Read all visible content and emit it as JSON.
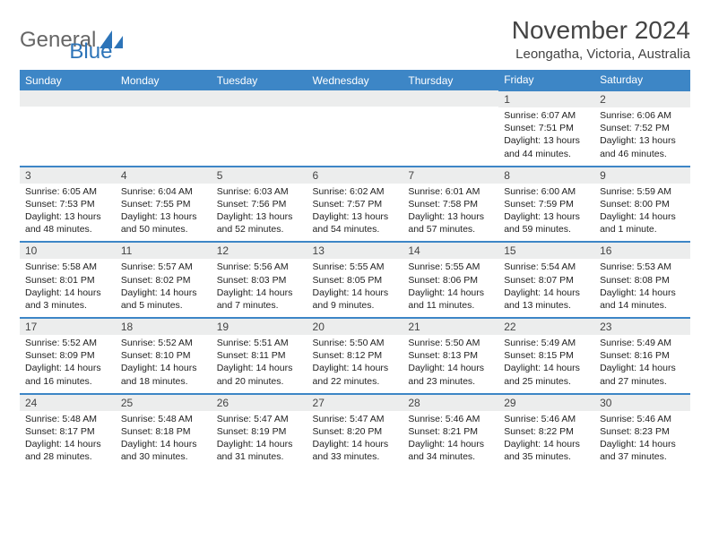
{
  "logo": {
    "word1": "General",
    "word2": "Blue"
  },
  "title": "November 2024",
  "location": "Leongatha, Victoria, Australia",
  "headers": [
    "Sunday",
    "Monday",
    "Tuesday",
    "Wednesday",
    "Thursday",
    "Friday",
    "Saturday"
  ],
  "colors": {
    "header_bg": "#3d86c6",
    "header_text": "#ffffff",
    "daynum_bg": "#eceded",
    "border": "#3d86c6",
    "logo_blue": "#2d74b8",
    "text": "#222222"
  },
  "weeks": [
    [
      null,
      null,
      null,
      null,
      null,
      {
        "n": "1",
        "sunrise": "6:07 AM",
        "sunset": "7:51 PM",
        "daylight": "13 hours and 44 minutes."
      },
      {
        "n": "2",
        "sunrise": "6:06 AM",
        "sunset": "7:52 PM",
        "daylight": "13 hours and 46 minutes."
      }
    ],
    [
      {
        "n": "3",
        "sunrise": "6:05 AM",
        "sunset": "7:53 PM",
        "daylight": "13 hours and 48 minutes."
      },
      {
        "n": "4",
        "sunrise": "6:04 AM",
        "sunset": "7:55 PM",
        "daylight": "13 hours and 50 minutes."
      },
      {
        "n": "5",
        "sunrise": "6:03 AM",
        "sunset": "7:56 PM",
        "daylight": "13 hours and 52 minutes."
      },
      {
        "n": "6",
        "sunrise": "6:02 AM",
        "sunset": "7:57 PM",
        "daylight": "13 hours and 54 minutes."
      },
      {
        "n": "7",
        "sunrise": "6:01 AM",
        "sunset": "7:58 PM",
        "daylight": "13 hours and 57 minutes."
      },
      {
        "n": "8",
        "sunrise": "6:00 AM",
        "sunset": "7:59 PM",
        "daylight": "13 hours and 59 minutes."
      },
      {
        "n": "9",
        "sunrise": "5:59 AM",
        "sunset": "8:00 PM",
        "daylight": "14 hours and 1 minute."
      }
    ],
    [
      {
        "n": "10",
        "sunrise": "5:58 AM",
        "sunset": "8:01 PM",
        "daylight": "14 hours and 3 minutes."
      },
      {
        "n": "11",
        "sunrise": "5:57 AM",
        "sunset": "8:02 PM",
        "daylight": "14 hours and 5 minutes."
      },
      {
        "n": "12",
        "sunrise": "5:56 AM",
        "sunset": "8:03 PM",
        "daylight": "14 hours and 7 minutes."
      },
      {
        "n": "13",
        "sunrise": "5:55 AM",
        "sunset": "8:05 PM",
        "daylight": "14 hours and 9 minutes."
      },
      {
        "n": "14",
        "sunrise": "5:55 AM",
        "sunset": "8:06 PM",
        "daylight": "14 hours and 11 minutes."
      },
      {
        "n": "15",
        "sunrise": "5:54 AM",
        "sunset": "8:07 PM",
        "daylight": "14 hours and 13 minutes."
      },
      {
        "n": "16",
        "sunrise": "5:53 AM",
        "sunset": "8:08 PM",
        "daylight": "14 hours and 14 minutes."
      }
    ],
    [
      {
        "n": "17",
        "sunrise": "5:52 AM",
        "sunset": "8:09 PM",
        "daylight": "14 hours and 16 minutes."
      },
      {
        "n": "18",
        "sunrise": "5:52 AM",
        "sunset": "8:10 PM",
        "daylight": "14 hours and 18 minutes."
      },
      {
        "n": "19",
        "sunrise": "5:51 AM",
        "sunset": "8:11 PM",
        "daylight": "14 hours and 20 minutes."
      },
      {
        "n": "20",
        "sunrise": "5:50 AM",
        "sunset": "8:12 PM",
        "daylight": "14 hours and 22 minutes."
      },
      {
        "n": "21",
        "sunrise": "5:50 AM",
        "sunset": "8:13 PM",
        "daylight": "14 hours and 23 minutes."
      },
      {
        "n": "22",
        "sunrise": "5:49 AM",
        "sunset": "8:15 PM",
        "daylight": "14 hours and 25 minutes."
      },
      {
        "n": "23",
        "sunrise": "5:49 AM",
        "sunset": "8:16 PM",
        "daylight": "14 hours and 27 minutes."
      }
    ],
    [
      {
        "n": "24",
        "sunrise": "5:48 AM",
        "sunset": "8:17 PM",
        "daylight": "14 hours and 28 minutes."
      },
      {
        "n": "25",
        "sunrise": "5:48 AM",
        "sunset": "8:18 PM",
        "daylight": "14 hours and 30 minutes."
      },
      {
        "n": "26",
        "sunrise": "5:47 AM",
        "sunset": "8:19 PM",
        "daylight": "14 hours and 31 minutes."
      },
      {
        "n": "27",
        "sunrise": "5:47 AM",
        "sunset": "8:20 PM",
        "daylight": "14 hours and 33 minutes."
      },
      {
        "n": "28",
        "sunrise": "5:46 AM",
        "sunset": "8:21 PM",
        "daylight": "14 hours and 34 minutes."
      },
      {
        "n": "29",
        "sunrise": "5:46 AM",
        "sunset": "8:22 PM",
        "daylight": "14 hours and 35 minutes."
      },
      {
        "n": "30",
        "sunrise": "5:46 AM",
        "sunset": "8:23 PM",
        "daylight": "14 hours and 37 minutes."
      }
    ]
  ]
}
